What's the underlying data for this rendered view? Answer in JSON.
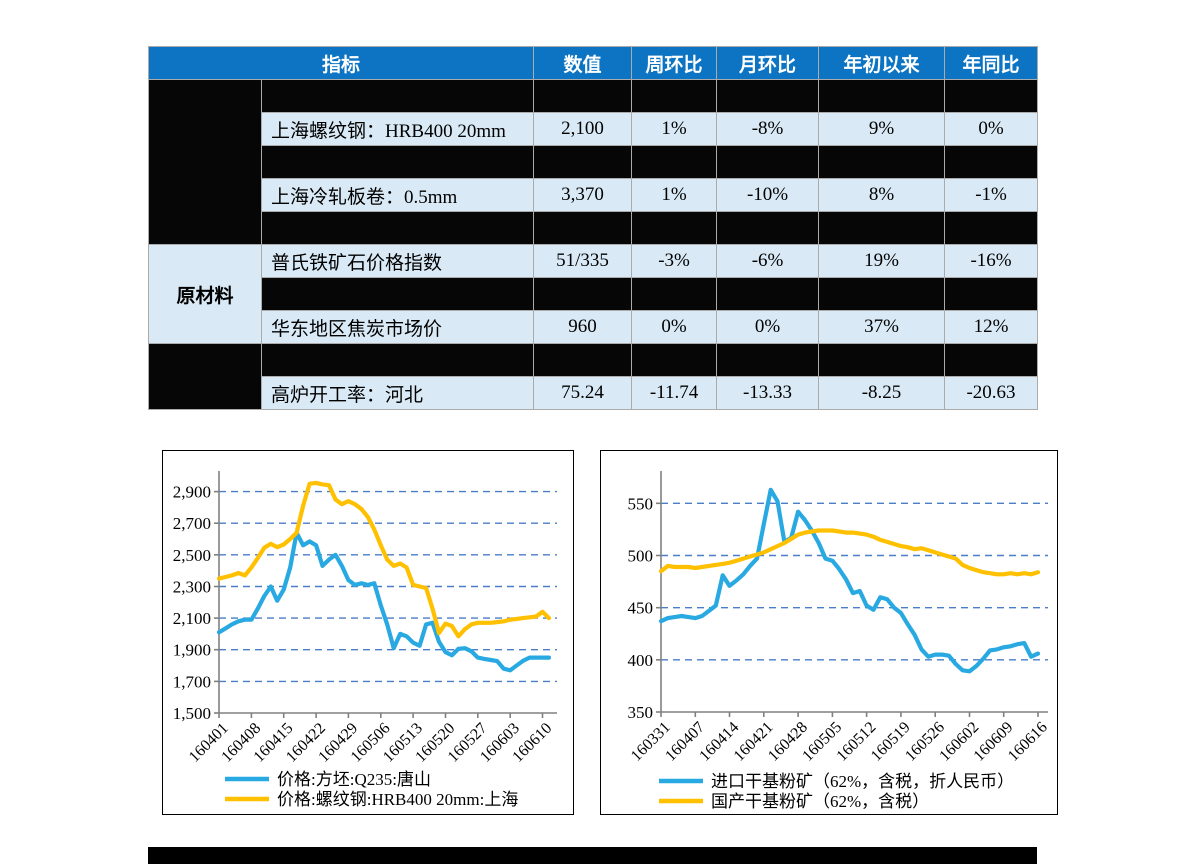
{
  "table": {
    "header": [
      "指标",
      "数值",
      "周环比",
      "月环比",
      "年初以来",
      "年同比"
    ],
    "header_bg": "#0c74c2",
    "data_row_bg": "#d9eaf6",
    "separator_bg": "#000000",
    "groups": [
      {
        "label": "",
        "span": 5
      },
      {
        "label": "原材料",
        "span": 3
      },
      {
        "label": "",
        "span": 2
      }
    ],
    "rows": [
      {
        "type": "sep"
      },
      {
        "type": "data",
        "cells": [
          "上海螺纹钢：HRB400 20mm",
          "2,100",
          "1%",
          "-8%",
          "9%",
          "0%"
        ]
      },
      {
        "type": "sep"
      },
      {
        "type": "data",
        "cells": [
          "上海冷轧板卷：0.5mm",
          "3,370",
          "1%",
          "-10%",
          "8%",
          "-1%"
        ]
      },
      {
        "type": "sep"
      },
      {
        "type": "data",
        "cells": [
          "普氏铁矿石价格指数",
          "51/335",
          "-3%",
          "-6%",
          "19%",
          "-16%"
        ]
      },
      {
        "type": "sep"
      },
      {
        "type": "data",
        "cells": [
          "华东地区焦炭市场价",
          "960",
          "0%",
          "0%",
          "37%",
          "12%"
        ]
      },
      {
        "type": "sep"
      },
      {
        "type": "data",
        "cells": [
          "高炉开工率：河北",
          "75.24",
          "-11.74",
          "-13.33",
          "-8.25",
          "-20.63"
        ]
      }
    ]
  },
  "chart_data": [
    {
      "name": "steel-price-chart",
      "type": "line",
      "title": "",
      "xlabel": "",
      "ylabel": "",
      "grid": "dashed-horizontal",
      "legend_position": "bottom",
      "axis_color": "#808080",
      "gridline_color": "#4a7cc7",
      "ylim": [
        1500,
        3030
      ],
      "yticks": [
        1500,
        1700,
        1900,
        2100,
        2300,
        2500,
        2700,
        2900
      ],
      "ytick_labels": [
        "1,500",
        "1,700",
        "1,900",
        "2,100",
        "2,300",
        "2,500",
        "2,700",
        "2,900"
      ],
      "x_tick_labels": [
        "160401",
        "160408",
        "160415",
        "160422",
        "160429",
        "160506",
        "160513",
        "160520",
        "160527",
        "160603",
        "160610"
      ],
      "series": [
        {
          "name": "价格:方坯:Q235:唐山",
          "color": "#29a9e1",
          "values": [
            2010,
            2035,
            2060,
            2080,
            2090,
            2090,
            2160,
            2240,
            2300,
            2210,
            2280,
            2420,
            2640,
            2560,
            2585,
            2560,
            2430,
            2470,
            2500,
            2430,
            2340,
            2310,
            2320,
            2310,
            2320,
            2180,
            2060,
            1910,
            2000,
            1985,
            1945,
            1925,
            2060,
            2070,
            1950,
            1885,
            1865,
            1905,
            1910,
            1890,
            1850,
            1842,
            1835,
            1828,
            1780,
            1770,
            1800,
            1830,
            1850,
            1850,
            1850,
            1850
          ]
        },
        {
          "name": "价格:螺纹钢:HRB400 20mm:上海",
          "color": "#ffc000",
          "values": [
            2350,
            2360,
            2370,
            2385,
            2370,
            2420,
            2480,
            2545,
            2570,
            2548,
            2565,
            2600,
            2640,
            2810,
            2950,
            2955,
            2945,
            2940,
            2850,
            2820,
            2840,
            2820,
            2790,
            2740,
            2660,
            2560,
            2470,
            2430,
            2445,
            2420,
            2310,
            2300,
            2290,
            2160,
            2005,
            2065,
            2050,
            1985,
            2030,
            2060,
            2070,
            2070,
            2070,
            2075,
            2080,
            2090,
            2095,
            2100,
            2105,
            2110,
            2140,
            2100
          ]
        }
      ]
    },
    {
      "name": "iron-ore-price-chart",
      "type": "line",
      "title": "",
      "xlabel": "",
      "ylabel": "",
      "grid": "dashed-horizontal",
      "legend_position": "bottom",
      "axis_color": "#808080",
      "gridline_color": "#4a7cc7",
      "ylim": [
        350,
        581
      ],
      "yticks": [
        350,
        400,
        450,
        500,
        550
      ],
      "ytick_labels": [
        "350",
        "400",
        "450",
        "500",
        "550"
      ],
      "x_tick_labels": [
        "160331",
        "160407",
        "160414",
        "160421",
        "160428",
        "160505",
        "160512",
        "160519",
        "160526",
        "160602",
        "160609",
        "160616"
      ],
      "series": [
        {
          "name": "进口干基粉矿（62%，含税，折人民币）",
          "color": "#29a9e1",
          "values": [
            437,
            440,
            441,
            442,
            441,
            440,
            442,
            447,
            452,
            481,
            471,
            476,
            482,
            490,
            497,
            530,
            563,
            552,
            513,
            517,
            542,
            534,
            524,
            512,
            497,
            495,
            487,
            477,
            464,
            466,
            452,
            448,
            460,
            458,
            450,
            445,
            434,
            424,
            410,
            403,
            405,
            405,
            404,
            396,
            390,
            389,
            394,
            401,
            409,
            410,
            412,
            413,
            415,
            416,
            403,
            406
          ]
        },
        {
          "name": "国产干基粉矿（62%，含税）",
          "color": "#ffc000",
          "values": [
            485,
            490,
            489,
            489,
            489,
            488,
            489,
            490,
            491,
            492,
            493,
            495,
            497,
            499,
            501,
            503,
            506,
            509,
            512,
            516,
            520,
            522,
            523,
            524,
            524,
            524,
            523,
            522,
            522,
            521,
            520,
            518,
            515,
            513,
            511,
            509,
            508,
            506,
            507,
            505,
            503,
            501,
            499,
            497,
            491,
            488,
            486,
            484,
            483,
            482,
            482,
            483,
            482,
            483,
            482,
            484
          ]
        }
      ]
    }
  ]
}
